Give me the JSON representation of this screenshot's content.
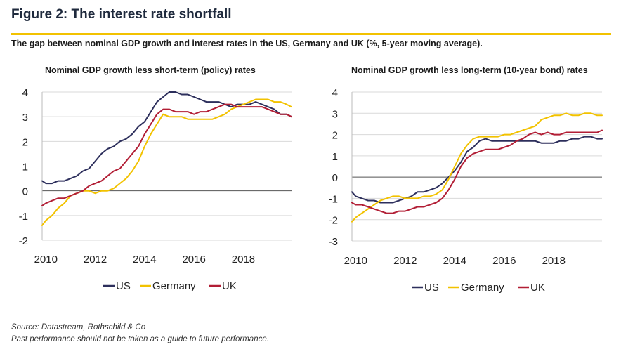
{
  "figure": {
    "title": "Figure 2: The interest rate shortfall",
    "subtitle": "The gap between nominal GDP growth and interest rates in the US, Germany and UK (%, 5-year moving average).",
    "source": "Source: Datastream, Rothschild & Co",
    "disclaimer": "Past performance should not be taken as a guide to future performance."
  },
  "colors": {
    "US": "#2d2f5c",
    "Germany": "#f2c200",
    "UK": "#b21e35",
    "accent_rule": "#f2c200",
    "grid": "#d9d9d9",
    "zero_line": "#555555"
  },
  "chart_data": [
    {
      "type": "line",
      "title": "Nominal GDP growth less short-term (policy) rates",
      "xlabel": "",
      "ylabel": "",
      "xlim": [
        2009.85,
        2019.95
      ],
      "ylim": [
        -2,
        4
      ],
      "yticks": [
        4,
        3,
        2,
        1,
        0,
        -1,
        -2
      ],
      "xticks": [
        2010,
        2012,
        2014,
        2016,
        2018
      ],
      "grid": true,
      "legend_position": "bottom",
      "series": [
        {
          "name": "US",
          "x": [
            2009.85,
            2010,
            2010.25,
            2010.5,
            2010.75,
            2011,
            2011.25,
            2011.5,
            2011.75,
            2012,
            2012.25,
            2012.5,
            2012.75,
            2013,
            2013.25,
            2013.5,
            2013.75,
            2014,
            2014.25,
            2014.5,
            2014.75,
            2015,
            2015.25,
            2015.5,
            2015.75,
            2016,
            2016.25,
            2016.5,
            2016.75,
            2017,
            2017.25,
            2017.5,
            2017.75,
            2018,
            2018.25,
            2018.5,
            2018.75,
            2019,
            2019.25,
            2019.5,
            2019.75,
            2019.95
          ],
          "y": [
            0.4,
            0.3,
            0.3,
            0.4,
            0.4,
            0.5,
            0.6,
            0.8,
            0.9,
            1.2,
            1.5,
            1.7,
            1.8,
            2.0,
            2.1,
            2.3,
            2.6,
            2.8,
            3.2,
            3.6,
            3.8,
            4.0,
            4.0,
            3.9,
            3.9,
            3.8,
            3.7,
            3.6,
            3.6,
            3.6,
            3.5,
            3.4,
            3.5,
            3.5,
            3.5,
            3.6,
            3.5,
            3.4,
            3.3,
            3.1,
            3.1,
            3.0
          ]
        },
        {
          "name": "Germany",
          "x": [
            2009.85,
            2010,
            2010.25,
            2010.5,
            2010.75,
            2011,
            2011.25,
            2011.5,
            2011.75,
            2012,
            2012.25,
            2012.5,
            2012.75,
            2013,
            2013.25,
            2013.5,
            2013.75,
            2014,
            2014.25,
            2014.5,
            2014.75,
            2015,
            2015.25,
            2015.5,
            2015.75,
            2016,
            2016.25,
            2016.5,
            2016.75,
            2017,
            2017.25,
            2017.5,
            2017.75,
            2018,
            2018.25,
            2018.5,
            2018.75,
            2019,
            2019.25,
            2019.5,
            2019.75,
            2019.95
          ],
          "y": [
            -1.4,
            -1.2,
            -1.0,
            -0.7,
            -0.5,
            -0.2,
            -0.1,
            0.0,
            0.0,
            -0.1,
            0.0,
            0.0,
            0.1,
            0.3,
            0.5,
            0.8,
            1.2,
            1.8,
            2.3,
            2.7,
            3.1,
            3.0,
            3.0,
            3.0,
            2.9,
            2.9,
            2.9,
            2.9,
            2.9,
            3.0,
            3.1,
            3.3,
            3.4,
            3.5,
            3.6,
            3.7,
            3.7,
            3.7,
            3.6,
            3.6,
            3.5,
            3.4
          ]
        },
        {
          "name": "UK",
          "x": [
            2009.85,
            2010,
            2010.25,
            2010.5,
            2010.75,
            2011,
            2011.25,
            2011.5,
            2011.75,
            2012,
            2012.25,
            2012.5,
            2012.75,
            2013,
            2013.25,
            2013.5,
            2013.75,
            2014,
            2014.25,
            2014.5,
            2014.75,
            2015,
            2015.25,
            2015.5,
            2015.75,
            2016,
            2016.25,
            2016.5,
            2016.75,
            2017,
            2017.25,
            2017.5,
            2017.75,
            2018,
            2018.25,
            2018.5,
            2018.75,
            2019,
            2019.25,
            2019.5,
            2019.75,
            2019.95
          ],
          "y": [
            -0.6,
            -0.5,
            -0.4,
            -0.3,
            -0.3,
            -0.2,
            -0.1,
            0.0,
            0.2,
            0.3,
            0.4,
            0.6,
            0.8,
            0.9,
            1.2,
            1.5,
            1.8,
            2.3,
            2.7,
            3.1,
            3.3,
            3.3,
            3.2,
            3.2,
            3.2,
            3.1,
            3.2,
            3.2,
            3.3,
            3.4,
            3.5,
            3.5,
            3.4,
            3.4,
            3.4,
            3.4,
            3.4,
            3.3,
            3.2,
            3.1,
            3.1,
            3.0
          ]
        }
      ],
      "legend": [
        "US",
        "Germany",
        "UK"
      ]
    },
    {
      "type": "line",
      "title": "Nominal GDP growth less long-term (10-year bond) rates",
      "xlabel": "",
      "ylabel": "",
      "xlim": [
        2009.85,
        2019.95
      ],
      "ylim": [
        -3,
        4
      ],
      "yticks": [
        4,
        3,
        2,
        1,
        0,
        -1,
        -2,
        -3
      ],
      "xticks": [
        2010,
        2012,
        2014,
        2016,
        2018
      ],
      "grid": true,
      "legend_position": "bottom",
      "series": [
        {
          "name": "US",
          "x": [
            2009.85,
            2010,
            2010.25,
            2010.5,
            2010.75,
            2011,
            2011.25,
            2011.5,
            2011.75,
            2012,
            2012.25,
            2012.5,
            2012.75,
            2013,
            2013.25,
            2013.5,
            2013.75,
            2014,
            2014.25,
            2014.5,
            2014.75,
            2015,
            2015.25,
            2015.5,
            2015.75,
            2016,
            2016.25,
            2016.5,
            2016.75,
            2017,
            2017.25,
            2017.5,
            2017.75,
            2018,
            2018.25,
            2018.5,
            2018.75,
            2019,
            2019.25,
            2019.5,
            2019.75,
            2019.95
          ],
          "y": [
            -0.7,
            -0.9,
            -1.0,
            -1.1,
            -1.1,
            -1.2,
            -1.2,
            -1.2,
            -1.1,
            -1.0,
            -0.9,
            -0.7,
            -0.7,
            -0.6,
            -0.5,
            -0.3,
            0.0,
            0.3,
            0.7,
            1.2,
            1.4,
            1.7,
            1.8,
            1.7,
            1.7,
            1.7,
            1.7,
            1.7,
            1.7,
            1.7,
            1.7,
            1.6,
            1.6,
            1.6,
            1.7,
            1.7,
            1.8,
            1.8,
            1.9,
            1.9,
            1.8,
            1.8
          ]
        },
        {
          "name": "Germany",
          "x": [
            2009.85,
            2010,
            2010.25,
            2010.5,
            2010.75,
            2011,
            2011.25,
            2011.5,
            2011.75,
            2012,
            2012.25,
            2012.5,
            2012.75,
            2013,
            2013.25,
            2013.5,
            2013.75,
            2014,
            2014.25,
            2014.5,
            2014.75,
            2015,
            2015.25,
            2015.5,
            2015.75,
            2016,
            2016.25,
            2016.5,
            2016.75,
            2017,
            2017.25,
            2017.5,
            2017.75,
            2018,
            2018.25,
            2018.5,
            2018.75,
            2019,
            2019.25,
            2019.5,
            2019.75,
            2019.95
          ],
          "y": [
            -2.1,
            -1.9,
            -1.7,
            -1.5,
            -1.3,
            -1.1,
            -1.0,
            -0.9,
            -0.9,
            -1.0,
            -1.0,
            -1.0,
            -0.9,
            -0.9,
            -0.8,
            -0.6,
            -0.1,
            0.5,
            1.1,
            1.5,
            1.8,
            1.9,
            1.9,
            1.9,
            1.9,
            2.0,
            2.0,
            2.1,
            2.2,
            2.3,
            2.4,
            2.7,
            2.8,
            2.9,
            2.9,
            3.0,
            2.9,
            2.9,
            3.0,
            3.0,
            2.9,
            2.9
          ]
        },
        {
          "name": "UK",
          "x": [
            2009.85,
            2010,
            2010.25,
            2010.5,
            2010.75,
            2011,
            2011.25,
            2011.5,
            2011.75,
            2012,
            2012.25,
            2012.5,
            2012.75,
            2013,
            2013.25,
            2013.5,
            2013.75,
            2014,
            2014.25,
            2014.5,
            2014.75,
            2015,
            2015.25,
            2015.5,
            2015.75,
            2016,
            2016.25,
            2016.5,
            2016.75,
            2017,
            2017.25,
            2017.5,
            2017.75,
            2018,
            2018.25,
            2018.5,
            2018.75,
            2019,
            2019.25,
            2019.5,
            2019.75,
            2019.95
          ],
          "y": [
            -1.2,
            -1.3,
            -1.3,
            -1.4,
            -1.5,
            -1.6,
            -1.7,
            -1.7,
            -1.6,
            -1.6,
            -1.5,
            -1.4,
            -1.4,
            -1.3,
            -1.2,
            -1.0,
            -0.6,
            -0.1,
            0.5,
            0.9,
            1.1,
            1.2,
            1.3,
            1.3,
            1.3,
            1.4,
            1.5,
            1.7,
            1.8,
            2.0,
            2.1,
            2.0,
            2.1,
            2.0,
            2.0,
            2.1,
            2.1,
            2.1,
            2.1,
            2.1,
            2.1,
            2.2
          ]
        }
      ],
      "legend": [
        "US",
        "Germany",
        "UK"
      ]
    }
  ]
}
